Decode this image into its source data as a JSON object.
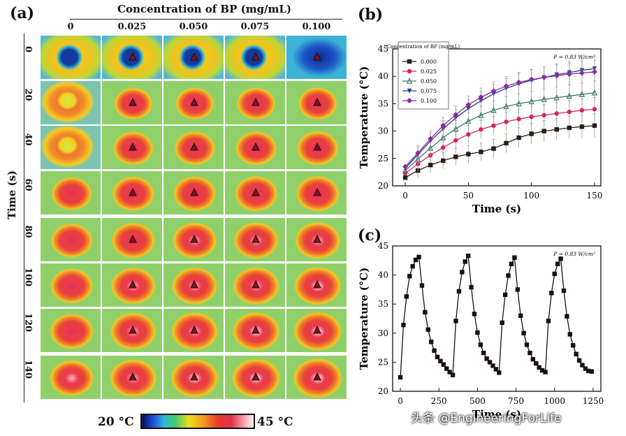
{
  "panel_a": {
    "label": "(a)",
    "concentration_title": "Concentration of BP (mg/mL)",
    "concentrations": [
      "0",
      "0.025",
      "0.050",
      "0.075",
      "0.100"
    ],
    "time_axis_title": "Time (s)",
    "times": [
      "0",
      "20",
      "40",
      "60",
      "80",
      "100",
      "120",
      "140"
    ],
    "colorbar": {
      "min_label": "20 °C",
      "max_label": "45 °C"
    }
  },
  "panel_b": {
    "label": "(b)"
  },
  "panel_c": {
    "label": "(c)"
  },
  "watermark": "头条 @EngineeringForLife",
  "chart_data": [
    {
      "type": "line",
      "panel": "b",
      "xlabel": "Time (s)",
      "ylabel": "Temperature (°C)",
      "xlim": [
        -10,
        155
      ],
      "ylim": [
        20,
        45
      ],
      "xticks": [
        0,
        50,
        100,
        150
      ],
      "yticks": [
        20,
        25,
        30,
        35,
        40,
        45
      ],
      "annotation": "P = 0.83 W/cm²",
      "legend_title": "Concentration of BP (mg/mL)",
      "legend_position": "top-left",
      "x": [
        0,
        10,
        20,
        30,
        40,
        50,
        60,
        70,
        80,
        90,
        100,
        110,
        120,
        130,
        140,
        150
      ],
      "series": [
        {
          "name": "0.000",
          "color": "#2a1a14",
          "marker": "square",
          "values": [
            21.5,
            22.8,
            23.8,
            24.6,
            25.3,
            25.8,
            26.2,
            26.8,
            27.8,
            28.8,
            29.5,
            30.0,
            30.3,
            30.6,
            30.8,
            31.0
          ]
        },
        {
          "name": "0.025",
          "color": "#d6245e",
          "marker": "circle",
          "values": [
            22.3,
            24.0,
            25.6,
            27.0,
            28.3,
            29.4,
            30.3,
            31.0,
            31.7,
            32.2,
            32.6,
            32.9,
            33.2,
            33.5,
            33.8,
            34.0
          ]
        },
        {
          "name": "0.050",
          "color": "#3f7a6a",
          "marker": "triangle-up",
          "values": [
            22.8,
            24.9,
            26.9,
            28.8,
            30.4,
            31.8,
            32.9,
            33.8,
            34.5,
            35.0,
            35.4,
            35.8,
            36.1,
            36.4,
            36.7,
            37.0
          ]
        },
        {
          "name": "0.075",
          "color": "#233a8c",
          "marker": "triangle-down",
          "values": [
            23.2,
            25.7,
            28.2,
            30.4,
            32.4,
            34.1,
            35.5,
            36.8,
            37.8,
            38.6,
            39.3,
            39.8,
            40.3,
            40.7,
            41.1,
            41.4
          ]
        },
        {
          "name": "0.100",
          "color": "#8e2a9e",
          "marker": "diamond",
          "values": [
            23.5,
            26.0,
            28.6,
            31.0,
            33.0,
            34.8,
            36.2,
            37.3,
            38.2,
            38.9,
            39.4,
            39.8,
            40.1,
            40.4,
            40.6,
            40.8
          ]
        }
      ],
      "error": 2.2
    },
    {
      "type": "line",
      "panel": "c",
      "xlabel": "Time (s)",
      "ylabel": "Temperature (°C)",
      "xlim": [
        -50,
        1300
      ],
      "ylim": [
        20,
        45
      ],
      "xticks": [
        0,
        250,
        500,
        750,
        1000,
        1250
      ],
      "yticks": [
        20,
        25,
        30,
        35,
        40,
        45
      ],
      "annotation": "P = 0.83 W/cm²",
      "x": [
        0,
        20,
        40,
        60,
        80,
        100,
        120,
        140,
        160,
        180,
        200,
        220,
        240,
        260,
        280,
        300,
        320,
        340,
        360,
        380,
        400,
        420,
        440,
        460,
        480,
        500,
        520,
        540,
        560,
        580,
        600,
        620,
        640,
        660,
        680,
        700,
        720,
        740,
        760,
        780,
        800,
        820,
        840,
        860,
        880,
        900,
        920,
        940,
        960,
        980,
        1000,
        1020,
        1040,
        1060,
        1080,
        1100,
        1120,
        1140,
        1160,
        1180,
        1200,
        1220,
        1240
      ],
      "values": [
        22.4,
        31.4,
        36.3,
        39.8,
        41.5,
        42.6,
        43.1,
        38.2,
        33.6,
        30.6,
        28.5,
        27.0,
        25.9,
        25.2,
        24.6,
        23.9,
        23.3,
        22.8,
        32.1,
        37.2,
        40.5,
        42.3,
        43.3,
        37.9,
        33.3,
        30.1,
        28.0,
        26.6,
        25.6,
        25.0,
        24.4,
        23.8,
        23.2,
        31.8,
        36.6,
        39.9,
        41.9,
        43.0,
        37.5,
        33.0,
        30.0,
        28.0,
        26.6,
        25.5,
        24.8,
        24.1,
        23.6,
        23.3,
        32.1,
        36.9,
        40.2,
        41.9,
        42.8,
        37.3,
        32.9,
        29.8,
        27.9,
        26.4,
        25.3,
        24.5,
        23.9,
        23.5,
        23.4
      ],
      "color": "#1a1012",
      "marker": "square"
    }
  ]
}
